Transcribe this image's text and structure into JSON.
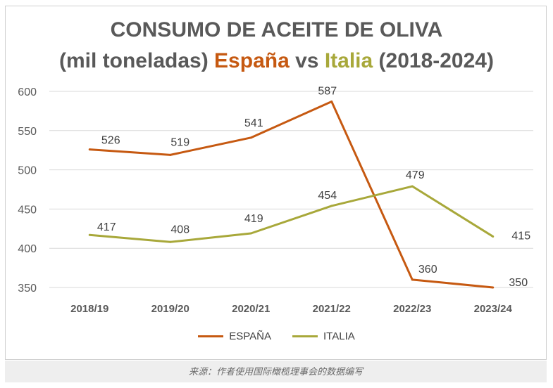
{
  "title": {
    "line1": "CONSUMO DE ACEITE DE OLIVA",
    "line2_prefix": "(mil toneladas) ",
    "line2_es": "España",
    "line2_vs": " vs ",
    "line2_it": "Italia",
    "line2_suffix": " (2018-2024)"
  },
  "footer": {
    "source": "来源：作者使用国际橄榄理事会的数据编写"
  },
  "colors": {
    "espana": "#c65911",
    "italia": "#a8a83a",
    "grid": "#d9d9d9",
    "text": "#404040"
  },
  "chart_data": {
    "type": "line",
    "categories": [
      "2018/19",
      "2019/20",
      "2020/21",
      "2021/22",
      "2022/23",
      "2023/24"
    ],
    "series": [
      {
        "name": "ESPAÑA",
        "values": [
          526,
          519,
          541,
          587,
          360,
          350
        ]
      },
      {
        "name": "ITALIA",
        "values": [
          417,
          408,
          419,
          454,
          479,
          415
        ]
      }
    ],
    "ylim": [
      350,
      600
    ],
    "yticks": [
      350,
      400,
      450,
      500,
      550,
      600
    ],
    "grid": true,
    "legend": "bottom"
  }
}
